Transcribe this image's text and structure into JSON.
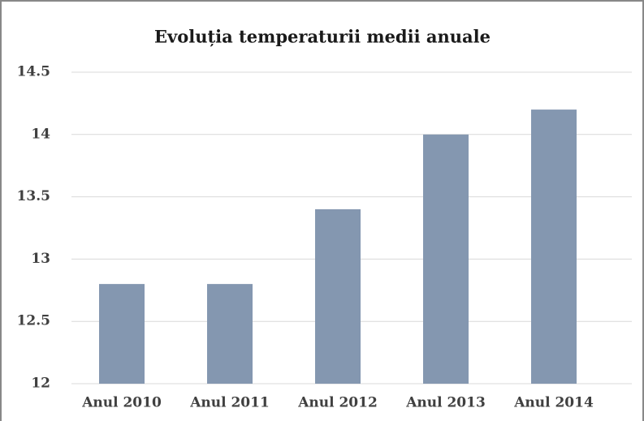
{
  "chart_data": {
    "type": "bar",
    "title": "Evoluția temperaturii medii anuale",
    "categories": [
      "Anul 2010",
      "Anul 2011",
      "Anul 2012",
      "Anul 2013",
      "Anul 2014"
    ],
    "values": [
      12.8,
      12.8,
      13.4,
      14.0,
      14.2
    ],
    "color": "#8497b0",
    "ylim": [
      12,
      14.5
    ],
    "yticks": [
      12,
      12.5,
      13,
      13.5,
      14,
      14.5
    ],
    "grid": true
  }
}
